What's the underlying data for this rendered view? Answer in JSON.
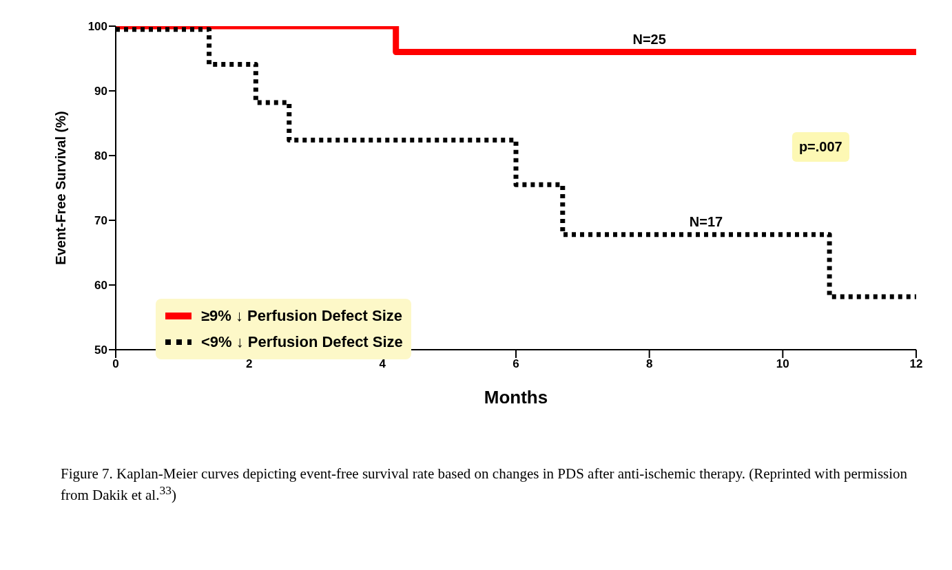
{
  "chart_data": {
    "type": "step",
    "xlabel": "Months",
    "ylabel": "Event-Free Survival (%)",
    "xlim": [
      0,
      12
    ],
    "xticks": [
      0,
      2,
      4,
      6,
      8,
      10,
      12
    ],
    "ylim": [
      50,
      100
    ],
    "yticks": [
      50,
      60,
      70,
      80,
      90,
      100
    ],
    "legend": "bottom left",
    "marker": "none",
    "series": [
      {
        "name": "≥9% ↓ Perfusion Defect Size",
        "color": "#ff0000",
        "line_style": "solid",
        "x": [
          0,
          4.2,
          12
        ],
        "values": [
          100,
          96,
          96
        ]
      },
      {
        "name": "<9% ↓ Perfusion Defect Size",
        "color": "#000000",
        "line_style": "dotted",
        "x": [
          0,
          1.4,
          2.1,
          2.6,
          6,
          6.7,
          10.7,
          12
        ],
        "values": [
          99.5,
          94.1,
          88.2,
          82.4,
          75.5,
          67.8,
          58.2,
          58.2
        ]
      }
    ],
    "annotations": [
      {
        "text": "N=25",
        "x": 8,
        "y": 96
      },
      {
        "text": "N=17",
        "x": 8.85,
        "y": 67.8
      },
      "p=.007",
      "Figure 7. Kaplan-Meier curves depicting event-free survival rate based on changes in PDS after anti-ischemic therapy. (Reprinted with permission from Dakik et al.$^{33}$)"
    ]
  }
}
